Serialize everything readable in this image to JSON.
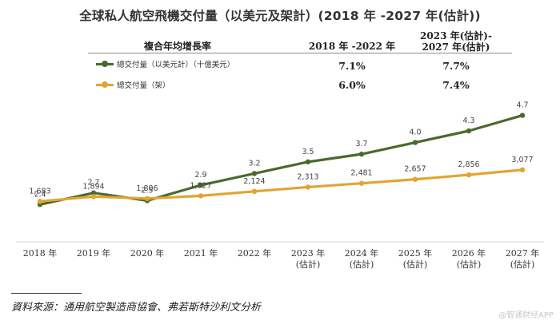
{
  "chart_data": {
    "type": "line",
    "title": "全球私人航空飛機交付量（以美元及架計）(2018 年 -2027 年(估計))",
    "categories": [
      [
        "2018 年"
      ],
      [
        "2019 年"
      ],
      [
        "2020 年"
      ],
      [
        "2021 年"
      ],
      [
        "2022 年"
      ],
      [
        "2023 年",
        "(估計)"
      ],
      [
        "2024 年",
        "(估計)"
      ],
      [
        "2025 年",
        "(估計)"
      ],
      [
        "2026 年",
        "(估計)"
      ],
      [
        "2027 年",
        "(估計)"
      ]
    ],
    "series": [
      {
        "name": "總交付量（以美元計）（十億美元）",
        "color": "#4a6a2c",
        "values": [
          2.4,
          2.7,
          2.5,
          2.9,
          3.2,
          3.5,
          3.7,
          4.0,
          4.3,
          4.7
        ],
        "labels": [
          "2.4",
          "2.7",
          "2.5",
          "2.9",
          "3.2",
          "3.5",
          "3.7",
          "4.0",
          "4.3",
          "4.7"
        ],
        "ylim": [
          1.5,
          5.0
        ]
      },
      {
        "name": "總交付量（架）",
        "color": "#e2a531",
        "values": [
          1683,
          1894,
          1806,
          1927,
          2124,
          2313,
          2481,
          2657,
          2856,
          3077
        ],
        "labels": [
          "1,683",
          "1,894",
          "1,806",
          "1,927",
          "2,124",
          "2,313",
          "2,481",
          "2,657",
          "2,856",
          "3,077"
        ],
        "ylim": [
          0,
          6000
        ]
      }
    ],
    "cagr_table": {
      "row_header": "複合年均增長率",
      "col1_header": "2018 年 -2022 年",
      "col2_header_line1": "2023 年(估計)-",
      "col2_header_line2": "2027 年(估計)",
      "rows": [
        {
          "series": "總交付量（以美元計）（十億美元）",
          "col1": "7.1%",
          "col2": "7.7%"
        },
        {
          "series": "總交付量（架）",
          "col1": "6.0%",
          "col2": "7.4%"
        }
      ]
    },
    "xlabel": "",
    "ylabel": "",
    "grid": false,
    "legend": "top-left"
  },
  "footer": {
    "source": "資料來源：通用航空製造商協會、弗若斯特沙利文分析",
    "watermark": "@智通财经APP"
  }
}
